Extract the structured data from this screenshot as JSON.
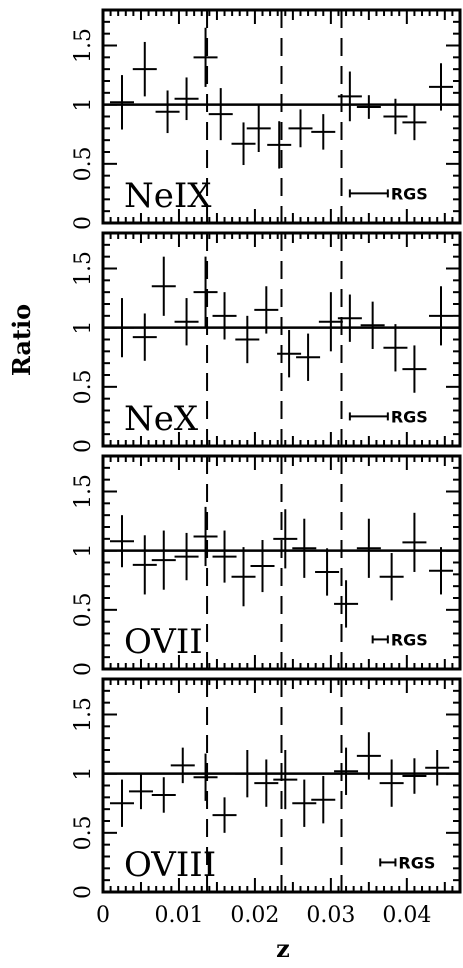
{
  "figure": {
    "ylabel": "Ratio",
    "xlabel": "z",
    "res_label": "RGS",
    "x_ticks": [
      "0",
      "0.01",
      "0.02",
      "0.03",
      "0.04"
    ],
    "y_ticks": [
      "0",
      "0.5",
      "1",
      "1.5"
    ]
  },
  "chart_data": [
    {
      "type": "scatter",
      "panel_label": "NeIX",
      "xlim": [
        0,
        0.047
      ],
      "ylim": [
        0,
        1.8
      ],
      "reference_line": 1.0,
      "vlines": [
        0.0137,
        0.0235,
        0.0314
      ],
      "resolution_bar": [
        0.0325,
        0.0375
      ],
      "points": [
        {
          "x": 0.0025,
          "y": 1.02,
          "yerr": 0.23
        },
        {
          "x": 0.0055,
          "y": 1.3,
          "yerr": 0.23
        },
        {
          "x": 0.0085,
          "y": 0.94,
          "yerr": 0.18
        },
        {
          "x": 0.011,
          "y": 1.05,
          "yerr": 0.18
        },
        {
          "x": 0.0135,
          "y": 1.4,
          "yerr": 0.25
        },
        {
          "x": 0.0155,
          "y": 0.92,
          "yerr": 0.22
        },
        {
          "x": 0.0185,
          "y": 0.67,
          "yerr": 0.18
        },
        {
          "x": 0.0205,
          "y": 0.8,
          "yerr": 0.2
        },
        {
          "x": 0.0232,
          "y": 0.66,
          "yerr": 0.2
        },
        {
          "x": 0.026,
          "y": 0.8,
          "yerr": 0.16
        },
        {
          "x": 0.029,
          "y": 0.77,
          "yerr": 0.15
        },
        {
          "x": 0.0325,
          "y": 1.07,
          "yerr": 0.21
        },
        {
          "x": 0.035,
          "y": 0.98,
          "yerr": 0.1
        },
        {
          "x": 0.0385,
          "y": 0.9,
          "yerr": 0.15
        },
        {
          "x": 0.041,
          "y": 0.85,
          "yerr": 0.15
        },
        {
          "x": 0.0445,
          "y": 1.15,
          "yerr": 0.2
        }
      ]
    },
    {
      "type": "scatter",
      "panel_label": "NeX",
      "xlim": [
        0,
        0.047
      ],
      "ylim": [
        0,
        1.8
      ],
      "reference_line": 1.0,
      "vlines": [
        0.0137,
        0.0235,
        0.0314
      ],
      "resolution_bar": [
        0.0325,
        0.0375
      ],
      "points": [
        {
          "x": 0.0025,
          "y": 1.0,
          "yerr": 0.25
        },
        {
          "x": 0.0055,
          "y": 0.92,
          "yerr": 0.2
        },
        {
          "x": 0.008,
          "y": 1.35,
          "yerr": 0.25
        },
        {
          "x": 0.011,
          "y": 1.05,
          "yerr": 0.2
        },
        {
          "x": 0.0135,
          "y": 1.3,
          "yerr": 0.3
        },
        {
          "x": 0.016,
          "y": 1.1,
          "yerr": 0.2
        },
        {
          "x": 0.019,
          "y": 0.9,
          "yerr": 0.2
        },
        {
          "x": 0.0215,
          "y": 1.15,
          "yerr": 0.2
        },
        {
          "x": 0.0245,
          "y": 0.78,
          "yerr": 0.2
        },
        {
          "x": 0.027,
          "y": 0.75,
          "yerr": 0.2
        },
        {
          "x": 0.03,
          "y": 1.05,
          "yerr": 0.25
        },
        {
          "x": 0.0325,
          "y": 1.08,
          "yerr": 0.2
        },
        {
          "x": 0.0355,
          "y": 1.02,
          "yerr": 0.2
        },
        {
          "x": 0.0385,
          "y": 0.83,
          "yerr": 0.2
        },
        {
          "x": 0.041,
          "y": 0.65,
          "yerr": 0.2
        },
        {
          "x": 0.0445,
          "y": 1.1,
          "yerr": 0.25
        }
      ]
    },
    {
      "type": "scatter",
      "panel_label": "OVII",
      "xlim": [
        0,
        0.047
      ],
      "ylim": [
        0,
        1.8
      ],
      "reference_line": 1.0,
      "vlines": [
        0.0137,
        0.0235,
        0.0314
      ],
      "resolution_bar": [
        0.0355,
        0.0375
      ],
      "points": [
        {
          "x": 0.0025,
          "y": 1.08,
          "yerr": 0.22
        },
        {
          "x": 0.0055,
          "y": 0.88,
          "yerr": 0.25
        },
        {
          "x": 0.008,
          "y": 0.92,
          "yerr": 0.25
        },
        {
          "x": 0.011,
          "y": 0.95,
          "yerr": 0.2
        },
        {
          "x": 0.0135,
          "y": 1.12,
          "yerr": 0.25
        },
        {
          "x": 0.016,
          "y": 0.95,
          "yerr": 0.22
        },
        {
          "x": 0.0185,
          "y": 0.78,
          "yerr": 0.25
        },
        {
          "x": 0.021,
          "y": 0.87,
          "yerr": 0.22
        },
        {
          "x": 0.024,
          "y": 1.1,
          "yerr": 0.25
        },
        {
          "x": 0.0265,
          "y": 1.02,
          "yerr": 0.25
        },
        {
          "x": 0.0295,
          "y": 0.82,
          "yerr": 0.2
        },
        {
          "x": 0.032,
          "y": 0.55,
          "yerr": 0.2
        },
        {
          "x": 0.035,
          "y": 1.02,
          "yerr": 0.25
        },
        {
          "x": 0.038,
          "y": 0.78,
          "yerr": 0.2
        },
        {
          "x": 0.041,
          "y": 1.07,
          "yerr": 0.25
        },
        {
          "x": 0.0445,
          "y": 0.83,
          "yerr": 0.2
        }
      ]
    },
    {
      "type": "scatter",
      "panel_label": "OVIII",
      "xlim": [
        0,
        0.047
      ],
      "ylim": [
        0,
        1.8
      ],
      "reference_line": 1.0,
      "vlines": [
        0.0137,
        0.0235,
        0.0314
      ],
      "resolution_bar": [
        0.0365,
        0.0385
      ],
      "points": [
        {
          "x": 0.0025,
          "y": 0.75,
          "yerr": 0.2
        },
        {
          "x": 0.005,
          "y": 0.85,
          "yerr": 0.15
        },
        {
          "x": 0.008,
          "y": 0.82,
          "yerr": 0.15
        },
        {
          "x": 0.0105,
          "y": 1.07,
          "yerr": 0.15
        },
        {
          "x": 0.0135,
          "y": 0.97,
          "yerr": 0.2
        },
        {
          "x": 0.016,
          "y": 0.65,
          "yerr": 0.15
        },
        {
          "x": 0.019,
          "y": 1.0,
          "yerr": 0.2
        },
        {
          "x": 0.0215,
          "y": 0.92,
          "yerr": 0.2
        },
        {
          "x": 0.024,
          "y": 0.95,
          "yerr": 0.25
        },
        {
          "x": 0.0265,
          "y": 0.75,
          "yerr": 0.2
        },
        {
          "x": 0.029,
          "y": 0.78,
          "yerr": 0.2
        },
        {
          "x": 0.032,
          "y": 1.02,
          "yerr": 0.2
        },
        {
          "x": 0.035,
          "y": 1.15,
          "yerr": 0.2
        },
        {
          "x": 0.038,
          "y": 0.92,
          "yerr": 0.2
        },
        {
          "x": 0.041,
          "y": 0.98,
          "yerr": 0.15
        },
        {
          "x": 0.044,
          "y": 1.05,
          "yerr": 0.15
        }
      ]
    }
  ]
}
